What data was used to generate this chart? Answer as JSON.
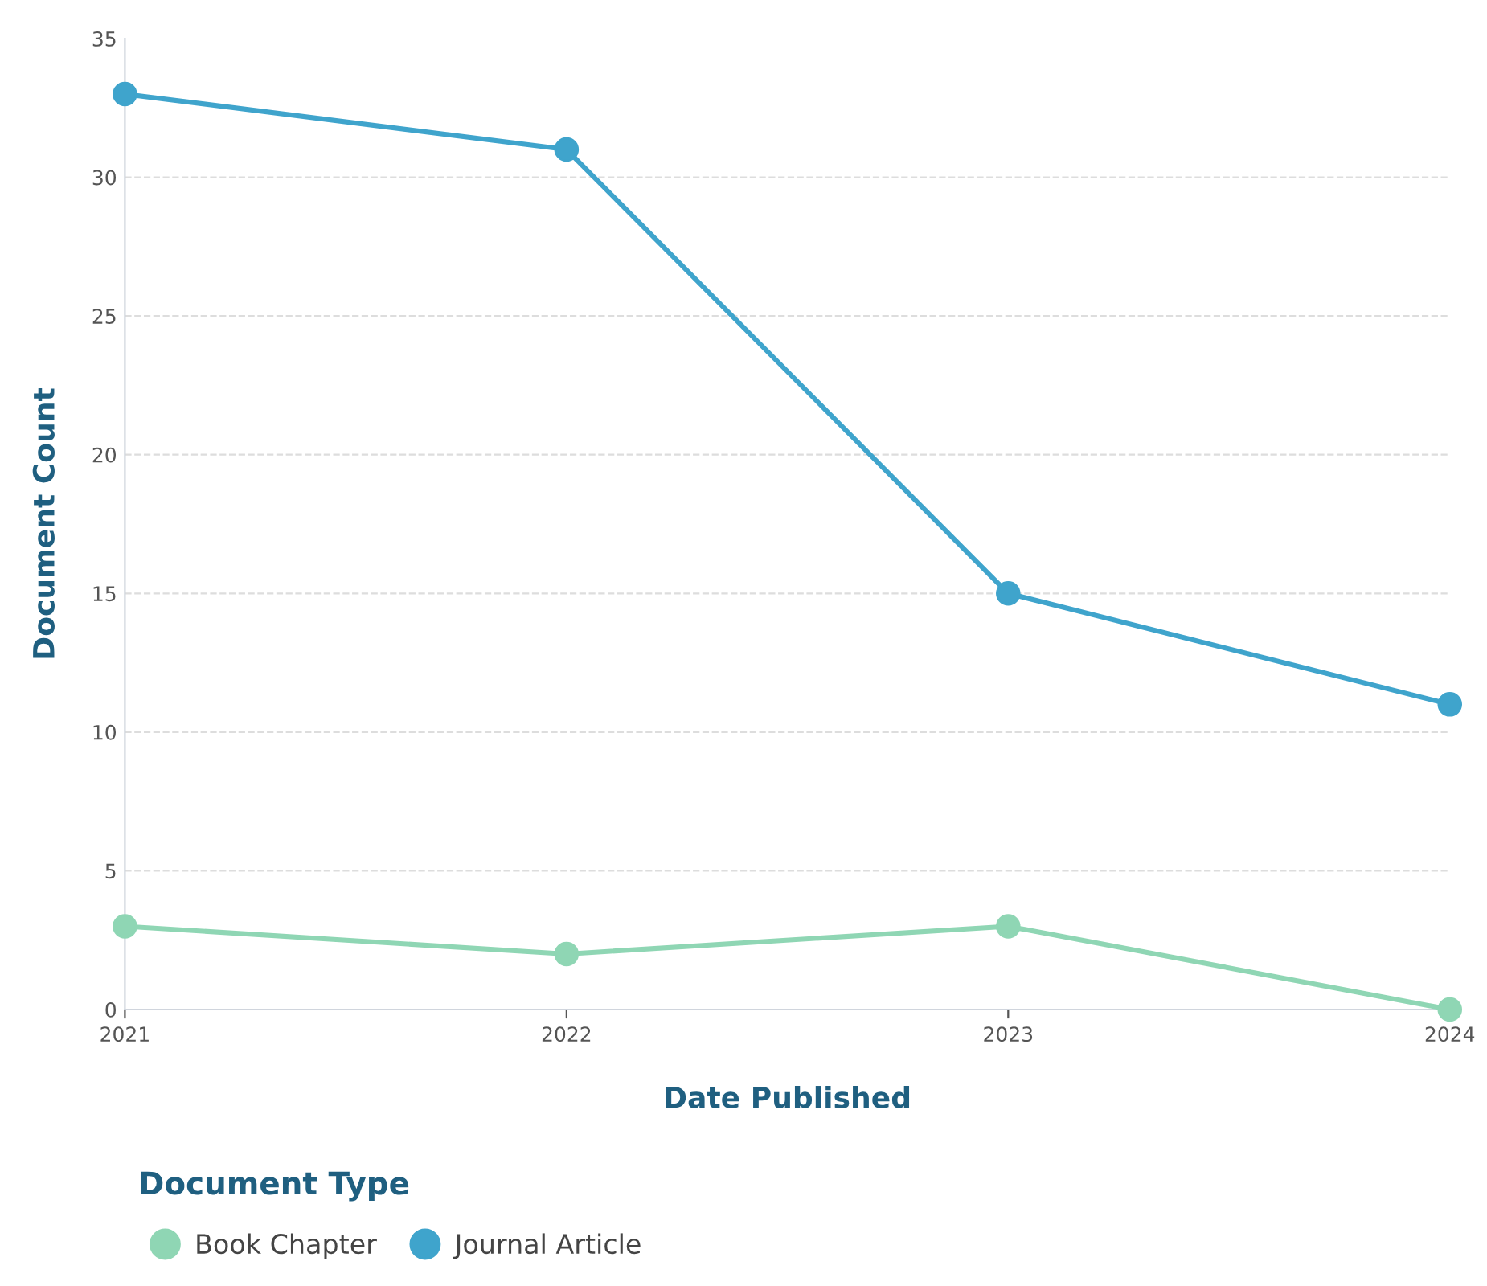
{
  "chart_data": {
    "type": "line",
    "xlabel": "Date Published",
    "ylabel": "Document Count",
    "legend_title": "Document Type",
    "x": [
      2021,
      2022,
      2023,
      2024
    ],
    "series": [
      {
        "name": "Book Chapter",
        "color": "#8fd6b4",
        "values": [
          3,
          2,
          3,
          0
        ]
      },
      {
        "name": "Journal Article",
        "color": "#3fa4cc",
        "values": [
          33,
          31,
          15,
          11
        ]
      }
    ],
    "xlim": [
      2021,
      2024
    ],
    "xticks": [
      2021,
      2022,
      2023,
      2024
    ],
    "ylim": [
      0,
      35
    ],
    "yticks": [
      0,
      5,
      10,
      15,
      20,
      25,
      30,
      35
    ],
    "grid": "y",
    "legend": "bottom left",
    "marker": "circle",
    "line_style": "solid"
  }
}
